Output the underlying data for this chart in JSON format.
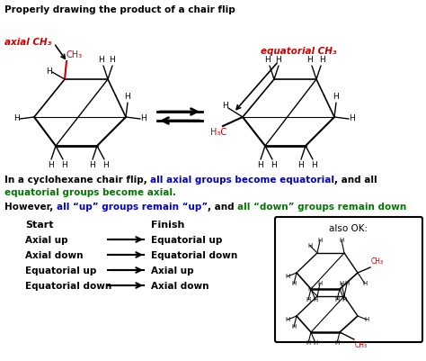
{
  "title": "Properly drawing the product of a chair flip",
  "bg_color": "#ffffff",
  "text_color": "#000000",
  "red_color": "#cc0000",
  "blue_color": "#0000cc",
  "green_color": "#007700",
  "table_rows": [
    [
      "Axial up",
      "Equatorial up"
    ],
    [
      "Axial down",
      "Equatorial down"
    ],
    [
      "Equatorial up",
      "Axial up"
    ],
    [
      "Equatorial down",
      "Axial down"
    ]
  ],
  "also_ok": "also OK:"
}
